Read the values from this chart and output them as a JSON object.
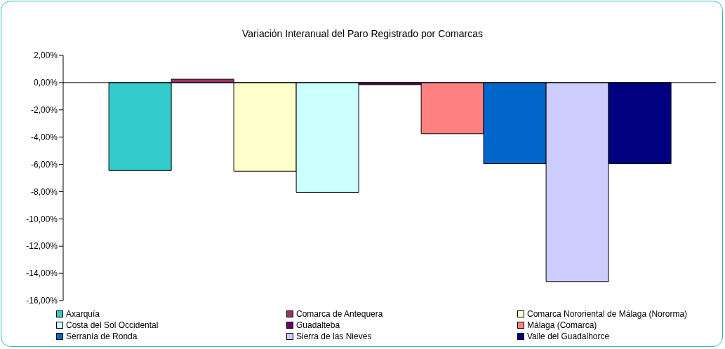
{
  "chart_data": {
    "type": "bar",
    "title": "Variación Interanual del Paro Registrado por Comarcas",
    "categories": [
      null
    ],
    "series": [
      {
        "name": "Axarquía",
        "color": "#33cccc",
        "values": [
          -6.45
        ]
      },
      {
        "name": "Comarca de Antequera",
        "color": "#993366",
        "values": [
          0.25
        ]
      },
      {
        "name": "Comarca Nororiental de Málaga (Nororma)",
        "color": "#ffffcc",
        "values": [
          -6.5
        ]
      },
      {
        "name": "Costa del Sol Occidental",
        "color": "#ccffff",
        "values": [
          -8.05
        ]
      },
      {
        "name": "Guadalteba",
        "color": "#660066",
        "values": [
          -0.15
        ]
      },
      {
        "name": "Málaga (Comarca)",
        "color": "#ff8080",
        "values": [
          -3.75
        ]
      },
      {
        "name": "Serranía de Ronda",
        "color": "#0066cc",
        "values": [
          -5.95
        ]
      },
      {
        "name": "Sierra de las Nieves",
        "color": "#ccccff",
        "values": [
          -14.6
        ]
      },
      {
        "name": "Valle del Guadalhorce",
        "color": "#000080",
        "values": [
          -5.95
        ]
      }
    ],
    "ylim": [
      -16,
      2
    ],
    "yticks": [
      {
        "value": 2,
        "label": "2,00%"
      },
      {
        "value": 0,
        "label": "0,00%"
      },
      {
        "value": -2,
        "label": "-2,00%"
      },
      {
        "value": -4,
        "label": "-4,00%"
      },
      {
        "value": -6,
        "label": "-6,00%"
      },
      {
        "value": -8,
        "label": "-8,00%"
      },
      {
        "value": -10,
        "label": "-10,00%"
      },
      {
        "value": -12,
        "label": "-12,00%"
      },
      {
        "value": -14,
        "label": "-14,00%"
      },
      {
        "value": -16,
        "label": "-16,00%"
      }
    ],
    "ref_lines": [
      {
        "axis": "y",
        "value": 0,
        "color": "#000000"
      }
    ],
    "grid": false,
    "legend": "bottom"
  }
}
